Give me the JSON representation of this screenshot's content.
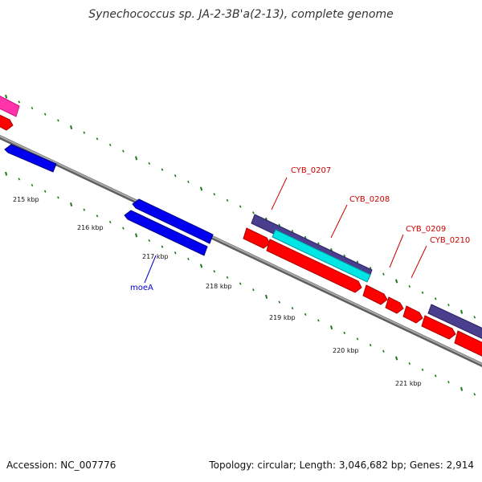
{
  "title": "Synechococcus sp. JA-2-3B'a(2-13), complete genome",
  "footer": {
    "accession": "Accession: NC_007776",
    "summary": "Topology: circular; Length: 3,046,682 bp; Genes: 2,914"
  },
  "scale": {
    "labels": [
      "215 kbp",
      "216 kbp",
      "217 kbp",
      "218 kbp",
      "219 kbp",
      "220 kbp",
      "221 kbp"
    ]
  },
  "genes": {
    "moeA": {
      "label": "moeA",
      "color": "#0000cc"
    },
    "CYB_0207": {
      "label": "CYB_0207",
      "color": "#cc0000"
    },
    "CYB_0208": {
      "label": "CYB_0208",
      "color": "#cc0000"
    },
    "CYB_0209": {
      "label": "CYB_0209",
      "color": "#cc0000"
    },
    "CYB_0210": {
      "label": "CYB_0210",
      "color": "#cc0000"
    }
  },
  "colors": {
    "forward_gene": "#ff0000",
    "reverse_gene": "#0000ee",
    "rna": "#ff33aa",
    "other_feature": "#4a3f8f",
    "highlight_feature": "#00e5e5",
    "backbone": "#8a8a8a",
    "ticks": "#1a7a1a"
  }
}
